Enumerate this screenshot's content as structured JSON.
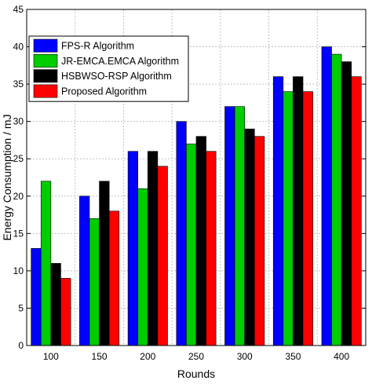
{
  "chart_data": {
    "type": "bar",
    "xlabel": "Rounds",
    "ylabel": "Energy Consumption / mJ",
    "categories": [
      "100",
      "150",
      "200",
      "250",
      "300",
      "350",
      "400"
    ],
    "ylim": [
      0,
      45
    ],
    "yticks": [
      0,
      5,
      10,
      15,
      20,
      25,
      30,
      35,
      40,
      45
    ],
    "grid": true,
    "legend_position": "top-left",
    "series": [
      {
        "name": "FPS-R Algorithm",
        "color": "#0000ff",
        "values": [
          13,
          20,
          26,
          30,
          32,
          36,
          40
        ]
      },
      {
        "name": "JR-EMCA.EMCA Algorithm",
        "color": "#00cc00",
        "values": [
          22,
          17,
          21,
          27,
          32,
          34,
          39
        ]
      },
      {
        "name": "HSBWSO-RSP Algorithm",
        "color": "#000000",
        "values": [
          11,
          22,
          26,
          28,
          29,
          36,
          38
        ]
      },
      {
        "name": "Proposed Algorithm",
        "color": "#ff0000",
        "values": [
          9,
          18,
          24,
          26,
          28,
          34,
          36
        ]
      }
    ]
  }
}
